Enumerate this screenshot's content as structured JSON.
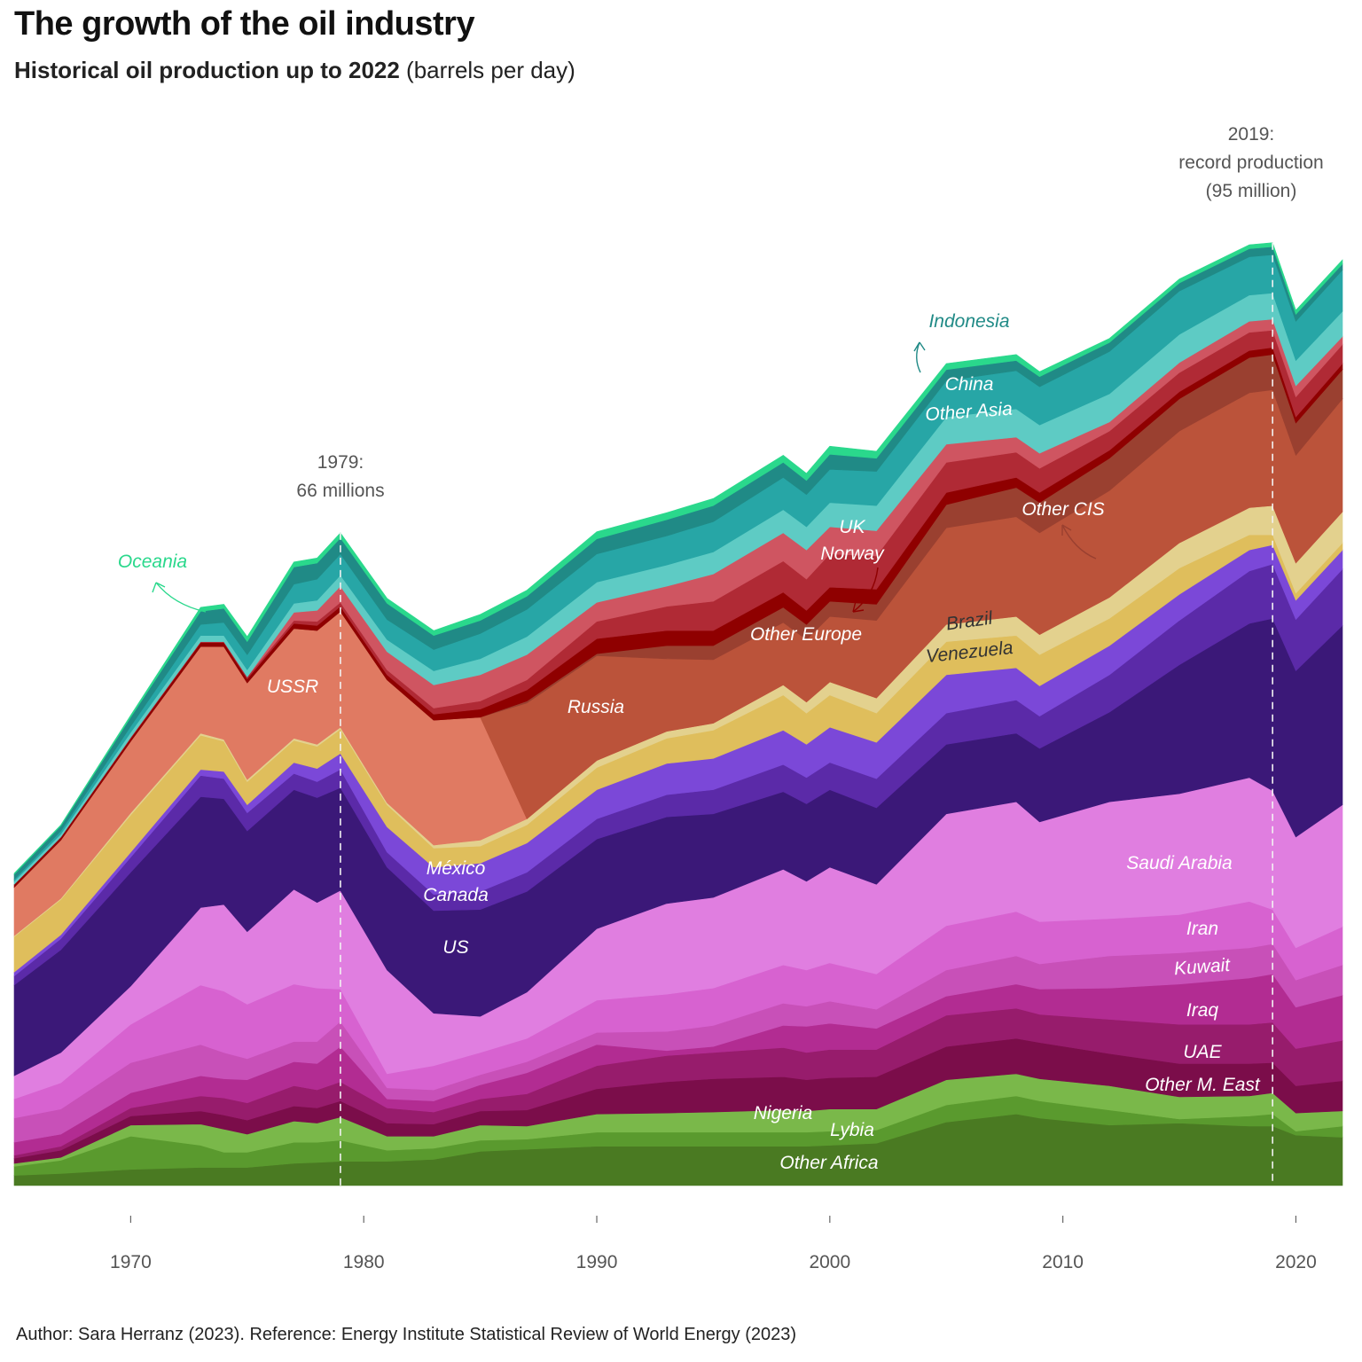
{
  "header": {
    "title": "The growth of the oil industry",
    "subtitle_bold": "Historical oil production up to 2022",
    "subtitle_rest": " (barrels per day)"
  },
  "caption": "Author: Sara Herranz (2023). Reference: Energy Institute Statistical Review of World Energy (2023)",
  "chart_data": {
    "type": "area",
    "stacked": true,
    "x_tick_labels": [
      "1970",
      "1980",
      "1990",
      "2000",
      "2010",
      "2020"
    ],
    "x_ticks": [
      1970,
      1980,
      1990,
      2000,
      2010,
      2020
    ],
    "xlim": [
      1965,
      2022
    ],
    "ylim": [
      0,
      100
    ],
    "y_unit": "million barrels per day",
    "grid": false,
    "x": [
      1965,
      1967,
      1970,
      1973,
      1974,
      1975,
      1977,
      1978,
      1979,
      1981,
      1983,
      1985,
      1987,
      1990,
      1993,
      1995,
      1998,
      1999,
      2000,
      2002,
      2005,
      2008,
      2009,
      2012,
      2015,
      2018,
      2019,
      2020,
      2022
    ],
    "series": [
      {
        "name": "Other Africa",
        "color": "#4a7a22",
        "values": [
          1.0,
          1.2,
          1.6,
          1.8,
          1.8,
          1.8,
          2.2,
          2.3,
          2.4,
          2.4,
          2.6,
          3.4,
          3.6,
          3.9,
          3.9,
          3.9,
          3.9,
          3.9,
          4.0,
          4.2,
          6.3,
          7.1,
          6.7,
          6.0,
          6.2,
          5.9,
          5.9,
          5.0,
          4.8
        ]
      },
      {
        "name": "Lybia",
        "color": "#5a9a2e",
        "values": [
          0.9,
          1.3,
          3.3,
          2.2,
          1.5,
          1.5,
          2.1,
          2.0,
          2.1,
          1.1,
          1.1,
          1.1,
          1.0,
          1.4,
          1.4,
          1.4,
          1.4,
          1.4,
          1.4,
          1.3,
          1.7,
          1.8,
          1.7,
          1.5,
          0.4,
          1.0,
          1.2,
          0.4,
          1.1
        ]
      },
      {
        "name": "Nigeria",
        "color": "#7ab84a",
        "values": [
          0.3,
          0.3,
          1.1,
          2.1,
          2.3,
          1.8,
          2.1,
          1.9,
          2.3,
          1.4,
          1.2,
          1.5,
          1.3,
          1.8,
          1.9,
          2.0,
          2.2,
          2.1,
          2.2,
          2.1,
          2.5,
          2.2,
          2.2,
          2.4,
          2.2,
          2.0,
          2.1,
          1.8,
          1.5
        ]
      },
      {
        "name": "Other M. East",
        "color": "#7b0d4a",
        "values": [
          0.5,
          0.7,
          0.9,
          1.3,
          1.4,
          1.4,
          1.5,
          1.5,
          1.6,
          1.3,
          1.2,
          1.4,
          1.6,
          2.5,
          3.1,
          3.3,
          3.3,
          3.1,
          3.1,
          3.2,
          3.3,
          3.5,
          3.6,
          3.2,
          3.3,
          3.2,
          3.0,
          2.7,
          3.0
        ]
      },
      {
        "name": "UAE",
        "color": "#971c6c",
        "values": [
          0.3,
          0.4,
          0.8,
          1.5,
          1.7,
          1.7,
          2.0,
          1.8,
          1.9,
          1.5,
          1.2,
          1.2,
          1.6,
          2.3,
          2.6,
          2.6,
          2.9,
          2.7,
          2.8,
          2.7,
          3.1,
          3.0,
          2.8,
          3.4,
          3.9,
          3.9,
          4.0,
          3.7,
          4.0
        ]
      },
      {
        "name": "Iraq",
        "color": "#b22c92",
        "values": [
          1.3,
          1.2,
          1.5,
          2.0,
          1.9,
          2.3,
          2.4,
          2.6,
          3.5,
          0.9,
          1.1,
          1.4,
          2.1,
          2.1,
          0.5,
          0.6,
          2.2,
          2.6,
          2.6,
          2.1,
          1.9,
          2.4,
          2.5,
          3.1,
          4.0,
          4.6,
          4.8,
          4.1,
          4.5
        ]
      },
      {
        "name": "Kuwait",
        "color": "#c850b8",
        "values": [
          2.4,
          2.5,
          3.0,
          3.1,
          2.6,
          2.1,
          2.0,
          2.2,
          2.5,
          1.1,
          1.1,
          1.0,
          1.1,
          1.2,
          1.9,
          2.1,
          2.2,
          2.0,
          2.2,
          1.9,
          2.6,
          2.8,
          2.5,
          3.2,
          3.1,
          3.0,
          3.0,
          2.7,
          3.0
        ]
      },
      {
        "name": "Iran",
        "color": "#d762d0",
        "values": [
          1.9,
          2.6,
          3.8,
          5.9,
          6.1,
          5.4,
          5.7,
          5.3,
          3.2,
          1.4,
          2.4,
          2.2,
          2.3,
          3.2,
          3.7,
          3.7,
          3.8,
          3.6,
          3.8,
          3.5,
          4.4,
          4.4,
          4.2,
          3.7,
          3.8,
          4.6,
          3.4,
          3.2,
          3.8
        ]
      },
      {
        "name": "Saudi Arabia",
        "color": "#e07ee0",
        "values": [
          2.3,
          3.0,
          3.8,
          7.7,
          8.6,
          7.2,
          9.4,
          8.5,
          9.8,
          10.3,
          5.2,
          3.6,
          4.6,
          7.1,
          9.0,
          9.0,
          9.5,
          8.8,
          9.5,
          8.9,
          11.1,
          10.9,
          9.9,
          11.6,
          12.0,
          12.3,
          11.8,
          11.0,
          12.1
        ]
      },
      {
        "name": "US",
        "color": "#3b1878",
        "values": [
          9.0,
          10.2,
          11.3,
          11.0,
          10.5,
          10.0,
          9.9,
          10.4,
          10.2,
          10.2,
          10.2,
          10.6,
          10.0,
          8.9,
          8.6,
          8.3,
          7.7,
          7.7,
          7.7,
          7.6,
          6.9,
          6.8,
          7.3,
          8.9,
          12.8,
          15.3,
          17.1,
          16.5,
          17.8
        ]
      },
      {
        "name": "Canada",
        "color": "#5b2aa8",
        "values": [
          0.9,
          1.1,
          1.5,
          2.1,
          2.0,
          1.8,
          1.6,
          1.6,
          1.8,
          1.5,
          1.6,
          1.8,
          1.9,
          2.0,
          2.2,
          2.4,
          2.7,
          2.6,
          2.7,
          2.9,
          3.1,
          3.3,
          3.2,
          3.7,
          4.4,
          5.2,
          5.4,
          5.1,
          5.6
        ]
      },
      {
        "name": "México",
        "color": "#7b48d8",
        "values": [
          0.4,
          0.4,
          0.5,
          0.6,
          0.7,
          0.8,
          1.1,
          1.3,
          1.6,
          2.5,
          2.7,
          2.8,
          2.9,
          2.9,
          3.1,
          3.1,
          3.4,
          3.3,
          3.5,
          3.6,
          3.8,
          3.2,
          3.0,
          2.9,
          2.6,
          2.1,
          1.9,
          1.9,
          1.9
        ]
      },
      {
        "name": "Venezuela",
        "color": "#dfbe5c",
        "values": [
          3.5,
          3.5,
          3.7,
          3.4,
          3.0,
          2.3,
          2.2,
          2.2,
          2.4,
          2.2,
          1.9,
          1.7,
          1.8,
          2.2,
          2.5,
          2.8,
          3.5,
          3.1,
          3.2,
          2.9,
          3.3,
          3.2,
          3.1,
          2.7,
          2.6,
          1.5,
          1.0,
          0.7,
          0.7
        ]
      },
      {
        "name": "Brazil",
        "color": "#e3d18e",
        "values": [
          0.1,
          0.1,
          0.2,
          0.2,
          0.2,
          0.2,
          0.2,
          0.2,
          0.2,
          0.2,
          0.3,
          0.6,
          0.6,
          0.7,
          0.7,
          0.7,
          1.0,
          1.1,
          1.3,
          1.5,
          1.7,
          1.9,
          2.0,
          2.1,
          2.5,
          2.7,
          2.9,
          3.0,
          3.1
        ]
      },
      {
        "name": "USSR",
        "color": "#e07a62",
        "values": [
          4.8,
          5.8,
          7.1,
          8.6,
          9.2,
          9.6,
          10.9,
          11.3,
          11.5,
          12.2,
          12.4,
          12.2,
          0,
          0,
          0,
          0,
          0,
          0,
          0,
          0,
          0,
          0,
          0,
          0,
          0,
          0,
          0,
          0,
          0
        ]
      },
      {
        "name": "Russia",
        "color": "#bb533a",
        "values": [
          0,
          0,
          0,
          0,
          0,
          0,
          0,
          0,
          0,
          0,
          0,
          0,
          11.5,
          10.4,
          7.2,
          6.3,
          6.2,
          6.2,
          6.5,
          7.7,
          9.6,
          9.9,
          10.1,
          10.6,
          11.1,
          11.4,
          11.5,
          10.7,
          11.2
        ]
      },
      {
        "name": "Other CIS",
        "color": "#9a4030",
        "values": [
          0,
          0,
          0,
          0,
          0,
          0,
          0,
          0,
          0,
          0,
          0,
          0,
          0.2,
          0.2,
          1.3,
          1.4,
          1.5,
          1.5,
          1.5,
          1.6,
          2.3,
          2.9,
          3.0,
          3.2,
          3.2,
          3.5,
          3.5,
          3.2,
          2.9
        ]
      },
      {
        "name": "Other Europe",
        "color": "#8f0000",
        "values": [
          0.3,
          0.3,
          0.3,
          0.4,
          0.4,
          0.4,
          0.5,
          0.5,
          0.5,
          0.5,
          0.6,
          0.8,
          1.1,
          1.5,
          1.5,
          1.5,
          1.5,
          1.4,
          1.4,
          1.5,
          1.2,
          1.0,
          1.0,
          0.8,
          0.7,
          0.7,
          0.7,
          0.6,
          0.6
        ]
      },
      {
        "name": "Norway",
        "color": "#b02a35",
        "values": [
          0,
          0,
          0.1,
          0.1,
          0.1,
          0.2,
          0.3,
          0.4,
          0.4,
          0.5,
          0.6,
          0.8,
          1.0,
          1.7,
          2.4,
          2.9,
          3.1,
          3.1,
          3.3,
          3.3,
          3.0,
          2.5,
          2.4,
          1.9,
          1.9,
          1.8,
          1.7,
          2.0,
          1.9
        ]
      },
      {
        "name": "UK",
        "color": "#cf5561",
        "values": [
          0,
          0,
          0,
          0,
          0,
          0,
          0.8,
          1.1,
          1.6,
          1.8,
          2.3,
          2.6,
          2.5,
          1.9,
          2.0,
          2.7,
          2.8,
          2.9,
          2.7,
          2.5,
          1.8,
          1.5,
          1.5,
          0.9,
          1.0,
          1.1,
          1.1,
          1.1,
          0.8
        ]
      },
      {
        "name": "Other Asia",
        "color": "#5ecbc4",
        "values": [
          0.3,
          0.3,
          0.5,
          0.6,
          0.6,
          0.7,
          0.9,
          1.0,
          1.1,
          1.2,
          1.4,
          1.6,
          1.8,
          2.0,
          2.1,
          2.2,
          2.3,
          2.3,
          2.4,
          2.5,
          2.7,
          2.8,
          2.8,
          2.8,
          2.8,
          2.6,
          2.6,
          2.5,
          2.5
        ]
      },
      {
        "name": "China",
        "color": "#27a6a6",
        "values": [
          0.2,
          0.3,
          0.6,
          1.1,
          1.3,
          1.5,
          1.9,
          2.1,
          2.1,
          2.0,
          2.1,
          2.5,
          2.7,
          2.8,
          2.9,
          3.0,
          3.2,
          3.2,
          3.3,
          3.4,
          3.6,
          3.8,
          3.8,
          4.2,
          4.3,
          3.8,
          3.8,
          3.9,
          4.1
        ]
      },
      {
        "name": "Indonesia",
        "color": "#208a86",
        "values": [
          0.5,
          0.5,
          0.9,
          1.3,
          1.4,
          1.3,
          1.7,
          1.6,
          1.6,
          1.6,
          1.4,
          1.3,
          1.3,
          1.5,
          1.6,
          1.6,
          1.5,
          1.4,
          1.5,
          1.3,
          1.1,
          1.0,
          1.0,
          0.9,
          0.8,
          0.8,
          0.8,
          0.7,
          0.6
        ]
      },
      {
        "name": "Oceania",
        "color": "#2ad88c",
        "values": [
          0.1,
          0.1,
          0.2,
          0.4,
          0.4,
          0.5,
          0.5,
          0.5,
          0.5,
          0.5,
          0.5,
          0.6,
          0.6,
          0.7,
          0.7,
          0.7,
          0.7,
          0.7,
          0.8,
          0.7,
          0.6,
          0.6,
          0.5,
          0.4,
          0.4,
          0.4,
          0.4,
          0.4,
          0.4
        ]
      }
    ],
    "annotations": [
      {
        "year": 1979,
        "text": [
          "1979:",
          "66 millions"
        ]
      },
      {
        "year": 2019,
        "text": [
          "2019:",
          "record production",
          "(95 million)"
        ]
      }
    ],
    "series_labels": [
      {
        "text": "Oceania",
        "color": "#2ad88c"
      },
      {
        "text": "Indonesia",
        "color": "#208a86"
      },
      {
        "text": "China",
        "color": "#ffffff"
      },
      {
        "text": "Other Asia",
        "color": "#ffffff"
      },
      {
        "text": "UK",
        "color": "#ffffff"
      },
      {
        "text": "Norway",
        "color": "#ffffff"
      },
      {
        "text": "Other Europe",
        "color": "#ffffff"
      },
      {
        "text": "Other CIS",
        "color": "#ffffff"
      },
      {
        "text": "Brazil",
        "color": "#333333"
      },
      {
        "text": "Venezuela",
        "color": "#333333"
      },
      {
        "text": "USSR",
        "color": "#ffffff"
      },
      {
        "text": "Russia",
        "color": "#ffffff"
      },
      {
        "text": "México",
        "color": "#ffffff"
      },
      {
        "text": "Canada",
        "color": "#ffffff"
      },
      {
        "text": "US",
        "color": "#ffffff"
      },
      {
        "text": "Saudi Arabia",
        "color": "#ffffff"
      },
      {
        "text": "Iran",
        "color": "#ffffff"
      },
      {
        "text": "Kuwait",
        "color": "#ffffff"
      },
      {
        "text": "Iraq",
        "color": "#ffffff"
      },
      {
        "text": "UAE",
        "color": "#ffffff"
      },
      {
        "text": "Other M. East",
        "color": "#ffffff"
      },
      {
        "text": "Nigeria",
        "color": "#ffffff"
      },
      {
        "text": "Lybia",
        "color": "#ffffff"
      },
      {
        "text": "Other Africa",
        "color": "#ffffff"
      }
    ]
  }
}
